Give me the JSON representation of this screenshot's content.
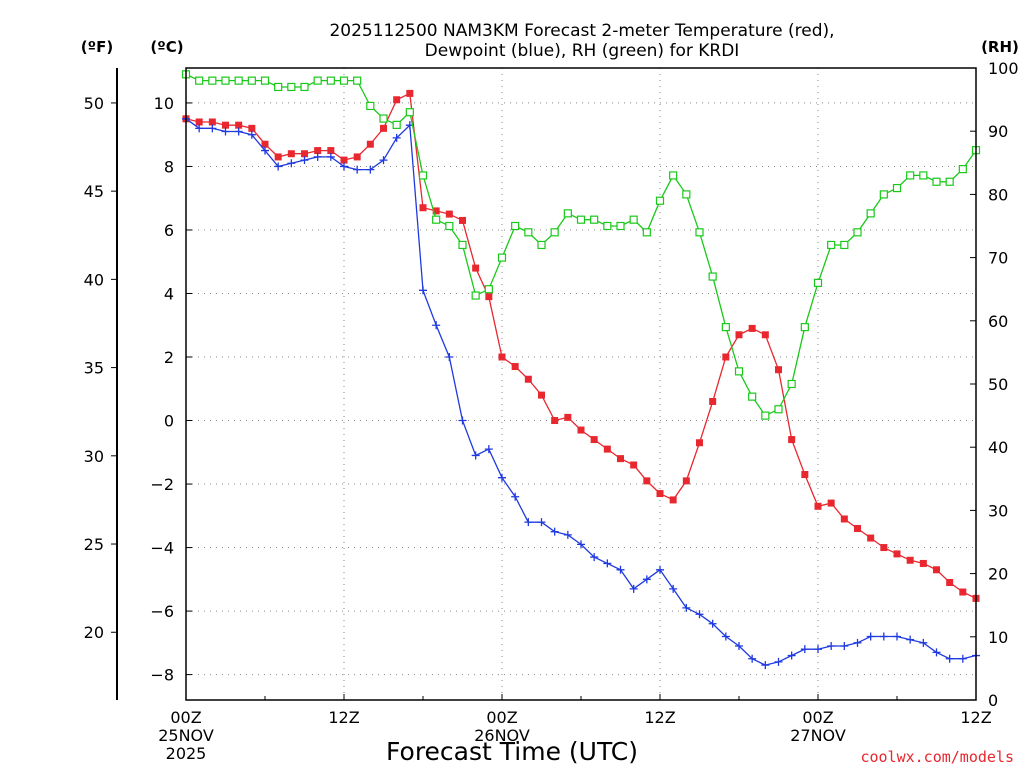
{
  "chart_data": {
    "type": "line",
    "title_line1": "2025112500 NAM3KM Forecast 2-meter Temperature (red),",
    "title_line2": "Dewpoint (blue), RH (green) for KRDI",
    "xlabel": "Forecast Time (UTC)",
    "units": {
      "fahrenheit": "(ºF)",
      "celsius": "(ºC)",
      "rh": "(RH)"
    },
    "x_range": [
      0,
      60
    ],
    "x_ticks": [
      {
        "x": 0,
        "time": "00Z",
        "date": "25NOV",
        "year": "2025"
      },
      {
        "x": 12,
        "time": "12Z",
        "date": "",
        "year": ""
      },
      {
        "x": 24,
        "time": "00Z",
        "date": "26NOV",
        "year": ""
      },
      {
        "x": 36,
        "time": "12Z",
        "date": "",
        "year": ""
      },
      {
        "x": 48,
        "time": "00Z",
        "date": "27NOV",
        "year": ""
      },
      {
        "x": 60,
        "time": "12Z",
        "date": "",
        "year": ""
      }
    ],
    "celsius_range": [
      -8.8,
      11.1
    ],
    "celsius_ticks": [
      "10",
      "8",
      "6",
      "4",
      "2",
      "0",
      "−2",
      "−4",
      "−6",
      "−8"
    ],
    "fahrenheit_ticks": [
      "50",
      "45",
      "40",
      "35",
      "30",
      "25",
      "20"
    ],
    "rh_range": [
      0,
      100
    ],
    "rh_ticks": [
      "100",
      "90",
      "80",
      "70",
      "60",
      "50",
      "40",
      "30",
      "20",
      "10",
      "0"
    ],
    "series": [
      {
        "name": "2-meter Temperature (°C)",
        "color": "#e8272f",
        "marker": "filled-square",
        "axis": "celsius",
        "values": [
          9.5,
          9.4,
          9.4,
          9.3,
          9.3,
          9.2,
          8.7,
          8.3,
          8.4,
          8.4,
          8.5,
          8.5,
          8.2,
          8.3,
          8.7,
          9.2,
          10.1,
          10.3,
          6.7,
          6.6,
          6.5,
          6.3,
          4.8,
          3.9,
          2.0,
          1.7,
          1.3,
          0.8,
          0.0,
          0.1,
          -0.3,
          -0.6,
          -0.9,
          -1.2,
          -1.4,
          -1.9,
          -2.3,
          -2.5,
          -1.9,
          -0.7,
          0.6,
          2.0,
          2.7,
          2.9,
          2.7,
          1.6,
          -0.6,
          -1.7,
          -2.7,
          -2.6,
          -3.1,
          -3.4,
          -3.7,
          -4.0,
          -4.2,
          -4.4,
          -4.5,
          -4.7,
          -5.1,
          -5.4,
          -5.6
        ]
      },
      {
        "name": "Dewpoint (°C)",
        "color": "#1f3ae0",
        "marker": "plus",
        "axis": "celsius",
        "values": [
          9.5,
          9.2,
          9.2,
          9.1,
          9.1,
          9.0,
          8.5,
          8.0,
          8.1,
          8.2,
          8.3,
          8.3,
          8.0,
          7.9,
          7.9,
          8.2,
          8.9,
          9.3,
          4.1,
          3.0,
          2.0,
          0.0,
          -1.1,
          -0.9,
          -1.8,
          -2.4,
          -3.2,
          -3.2,
          -3.5,
          -3.6,
          -3.9,
          -4.3,
          -4.5,
          -4.7,
          -5.3,
          -5.0,
          -4.7,
          -5.3,
          -5.9,
          -6.1,
          -6.4,
          -6.8,
          -7.1,
          -7.5,
          -7.7,
          -7.6,
          -7.4,
          -7.2,
          -7.2,
          -7.1,
          -7.1,
          -7.0,
          -6.8,
          -6.8,
          -6.8,
          -6.9,
          -7.0,
          -7.3,
          -7.5,
          -7.5,
          -7.4
        ]
      },
      {
        "name": "RH (%)",
        "color": "#19c919",
        "marker": "open-square",
        "axis": "rh",
        "values": [
          99,
          98,
          98,
          98,
          98,
          98,
          98,
          97,
          97,
          97,
          98,
          98,
          98,
          98,
          94,
          92,
          91,
          93,
          83,
          76,
          75,
          72,
          64,
          65,
          70,
          75,
          74,
          72,
          74,
          77,
          76,
          76,
          75,
          75,
          76,
          74,
          79,
          83,
          80,
          74,
          67,
          59,
          52,
          48,
          45,
          46,
          50,
          59,
          66,
          72,
          72,
          74,
          77,
          80,
          81,
          83,
          83,
          82,
          82,
          84,
          87
        ]
      }
    ],
    "watermark": "coolwx.com/models"
  }
}
